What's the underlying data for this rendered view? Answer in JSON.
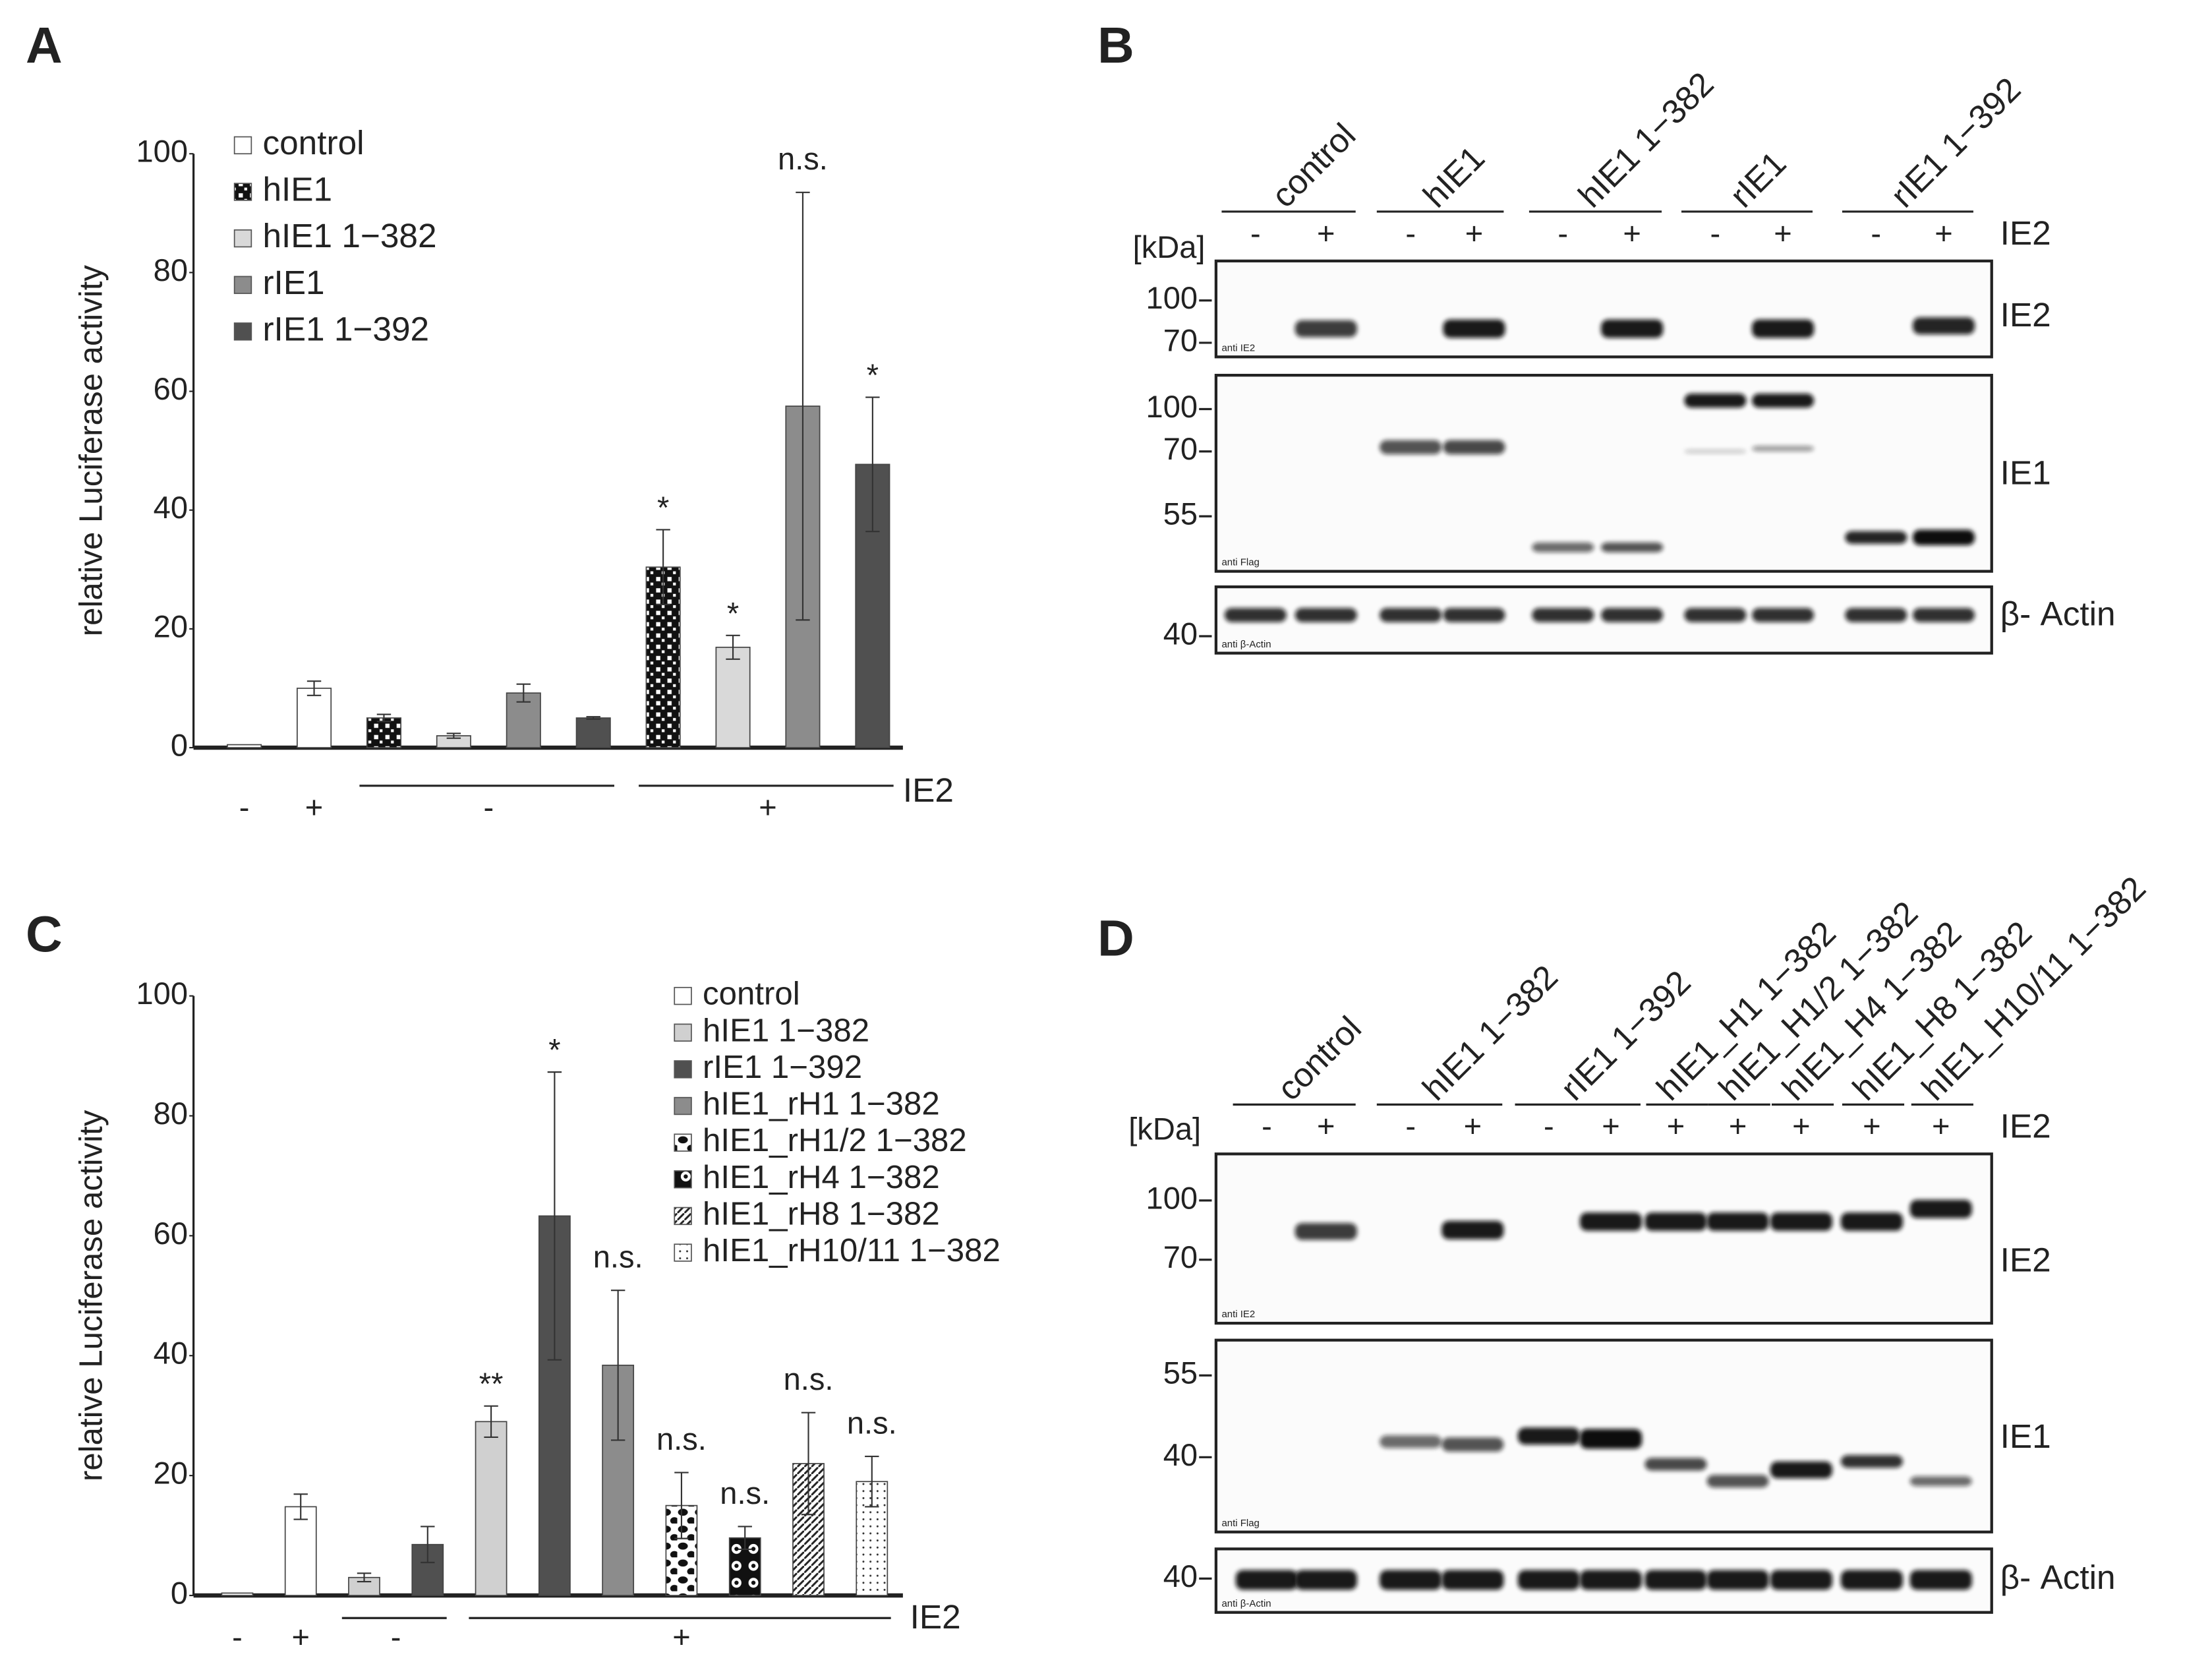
{
  "chart_data": [
    {
      "type": "bar",
      "panel_label": "A",
      "y_label": "relative Luciferase activity",
      "categories": [
        null,
        null,
        null,
        null,
        null,
        null,
        null,
        null,
        null,
        null
      ],
      "series": [
        {
          "name": "control",
          "color": "#ffffff",
          "values": [
            0.5,
            10.0,
            null,
            null,
            null,
            null,
            null,
            null,
            null,
            null
          ],
          "errors": [
            null,
            1.2,
            null,
            null,
            null,
            null,
            null,
            null,
            null,
            null
          ]
        },
        {
          "name": "hIE1",
          "pattern": "checker",
          "values": [
            null,
            null,
            5.0,
            null,
            null,
            null,
            30.4,
            null,
            null,
            null
          ],
          "errors": [
            null,
            null,
            0.6,
            null,
            null,
            null,
            6.3,
            null,
            null,
            null
          ]
        },
        {
          "name": "hIE1 1−382",
          "color": "#d9d9d9",
          "values": [
            null,
            null,
            null,
            2.0,
            null,
            null,
            null,
            16.9,
            null,
            null
          ],
          "errors": [
            null,
            null,
            null,
            0.4,
            null,
            null,
            null,
            2.0,
            null,
            null
          ]
        },
        {
          "name": "rIE1",
          "color": "#8c8c8c",
          "values": [
            null,
            null,
            null,
            null,
            9.2,
            null,
            null,
            null,
            57.5,
            null
          ],
          "errors": [
            null,
            null,
            null,
            null,
            1.5,
            null,
            null,
            null,
            36.0,
            null
          ]
        },
        {
          "name": "rIE1 1−392",
          "color": "#505050",
          "values": [
            null,
            null,
            null,
            null,
            null,
            5.0,
            null,
            null,
            null,
            47.7
          ],
          "errors": [
            null,
            null,
            null,
            null,
            null,
            0.2,
            null,
            null,
            null,
            11.3
          ]
        }
      ],
      "annotations": [
        null,
        null,
        null,
        null,
        null,
        null,
        "*",
        "*",
        "n.s.",
        "*"
      ],
      "ylim": [
        0,
        100
      ],
      "yticks": [
        0,
        20,
        40,
        60,
        80,
        100
      ],
      "x_groups": [
        {
          "label": "-",
          "from": 0,
          "to": 0
        },
        {
          "label": "+",
          "from": 1,
          "to": 1
        },
        {
          "label": "-",
          "from": 2,
          "to": 5
        },
        {
          "label": "+",
          "from": 6,
          "to": 9
        }
      ],
      "group_axis_label": "IE2"
    },
    {
      "type": "bar",
      "panel_label": "C",
      "y_label": "relative Luciferase activity",
      "categories": [
        null,
        null,
        null,
        null,
        null,
        null,
        null,
        null,
        null,
        null,
        null
      ],
      "series": [
        {
          "name": "control",
          "color": "#ffffff",
          "values": [
            0.4,
            14.8,
            null,
            null,
            null,
            null,
            null,
            null,
            null,
            null,
            null
          ],
          "errors": [
            null,
            2.1,
            null,
            null,
            null,
            null,
            null,
            null,
            null,
            null,
            null
          ]
        },
        {
          "name": "hIE1 1−382",
          "color": "#d0d0d0",
          "values": [
            null,
            null,
            3.0,
            null,
            29.0,
            null,
            null,
            null,
            null,
            null,
            null
          ],
          "errors": [
            null,
            null,
            0.7,
            null,
            2.6,
            null,
            null,
            null,
            null,
            null,
            null
          ]
        },
        {
          "name": "rIE1 1−392",
          "color": "#505050",
          "values": [
            null,
            null,
            null,
            8.5,
            null,
            63.3,
            null,
            null,
            null,
            null,
            null
          ],
          "errors": [
            null,
            null,
            null,
            3.0,
            null,
            24.0,
            null,
            null,
            null,
            null,
            null
          ]
        },
        {
          "name": "hIE1_rH1 1−382",
          "color": "#8c8c8c",
          "values": [
            null,
            null,
            null,
            null,
            null,
            null,
            38.4,
            null,
            null,
            null,
            null
          ],
          "errors": [
            null,
            null,
            null,
            null,
            null,
            null,
            12.5,
            null,
            null,
            null,
            null
          ]
        },
        {
          "name": "hIE1_rH1/2 1−382",
          "pattern": "spots",
          "values": [
            null,
            null,
            null,
            null,
            null,
            null,
            null,
            15.0,
            null,
            null,
            null
          ],
          "errors": [
            null,
            null,
            null,
            null,
            null,
            null,
            null,
            5.5,
            null,
            null,
            null
          ]
        },
        {
          "name": "hIE1_rH4 1−382",
          "pattern": "circles",
          "values": [
            null,
            null,
            null,
            null,
            null,
            null,
            null,
            null,
            9.6,
            null,
            null
          ],
          "errors": [
            null,
            null,
            null,
            null,
            null,
            null,
            null,
            null,
            1.9,
            null,
            null
          ]
        },
        {
          "name": "hIE1_rH8 1−382",
          "pattern": "diagonal",
          "values": [
            null,
            null,
            null,
            null,
            null,
            null,
            null,
            null,
            null,
            22.0,
            null
          ],
          "errors": [
            null,
            null,
            null,
            null,
            null,
            null,
            null,
            null,
            null,
            8.5,
            null
          ]
        },
        {
          "name": "hIE1_rH10/11 1−382",
          "pattern": "dots",
          "values": [
            null,
            null,
            null,
            null,
            null,
            null,
            null,
            null,
            null,
            null,
            19.0
          ],
          "errors": [
            null,
            null,
            null,
            null,
            null,
            null,
            null,
            null,
            null,
            null,
            4.2
          ]
        }
      ],
      "annotations": [
        null,
        null,
        null,
        null,
        "**",
        "*",
        "n.s.",
        "n.s.",
        "n.s.",
        "n.s.",
        "n.s."
      ],
      "ylim": [
        0,
        100
      ],
      "yticks": [
        0,
        20,
        40,
        60,
        80,
        100
      ],
      "x_groups": [
        {
          "label": "-",
          "from": 0,
          "to": 0
        },
        {
          "label": "+",
          "from": 1,
          "to": 1
        },
        {
          "label": "-",
          "from": 2,
          "to": 3
        },
        {
          "label": "+",
          "from": 4,
          "to": 10
        }
      ],
      "group_axis_label": "IE2"
    }
  ],
  "blots": [
    {
      "panel_label": "B",
      "unit_label": "[kDa]",
      "sign_label": "IE2",
      "groups": [
        {
          "label": "control",
          "from": 0,
          "to": 1
        },
        {
          "label": "hIE1",
          "from": 2,
          "to": 3
        },
        {
          "label": "hIE1 1−382",
          "from": 4,
          "to": 5
        },
        {
          "label": "rIE1",
          "from": 6,
          "to": 7
        },
        {
          "label": "rIE1 1−392",
          "from": 8,
          "to": 9
        }
      ],
      "lane_signs": [
        "-",
        "+",
        "-",
        "+",
        "-",
        "+",
        "-",
        "+",
        "-",
        "+"
      ],
      "membranes": [
        {
          "markers": [
            "100",
            "70"
          ],
          "label": "IE2",
          "antibody": "anti IE2"
        },
        {
          "markers": [
            "100",
            "70",
            "55"
          ],
          "label": "IE1",
          "antibody": "anti Flag"
        },
        {
          "markers": [
            "40"
          ],
          "label": "β- Actin",
          "antibody": "anti β-Actin"
        }
      ]
    },
    {
      "panel_label": "D",
      "unit_label": "[kDa]",
      "sign_label": "IE2",
      "groups": [
        {
          "label": "control",
          "from": 0,
          "to": 1
        },
        {
          "label": "hIE1 1−382",
          "from": 2,
          "to": 3
        },
        {
          "label": "rIE1 1−392",
          "from": 4,
          "to": 5
        },
        {
          "label": "hIE1_H1 1−382",
          "from": 6,
          "to": 6
        },
        {
          "label": "hIE1_H1/2 1−382",
          "from": 7,
          "to": 7
        },
        {
          "label": "hIE1_H4 1−382",
          "from": 8,
          "to": 8
        },
        {
          "label": "hIE1_H8 1−382",
          "from": 9,
          "to": 9
        },
        {
          "label": "hIE1_H10/11 1−382",
          "from": 10,
          "to": 10
        }
      ],
      "lane_signs": [
        "-",
        "+",
        "-",
        "+",
        "-",
        "+",
        "+",
        "+",
        "+",
        "+",
        "+"
      ],
      "membranes": [
        {
          "markers": [
            "100",
            "70"
          ],
          "label": "IE2",
          "antibody": "anti IE2"
        },
        {
          "markers": [
            "55",
            "40"
          ],
          "label": "IE1",
          "antibody": "anti Flag"
        },
        {
          "markers": [
            "40"
          ],
          "label": "β- Actin",
          "antibody": "anti β-Actin"
        }
      ]
    }
  ]
}
